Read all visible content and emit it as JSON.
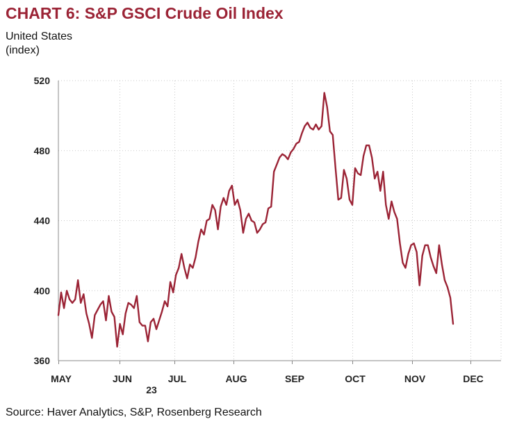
{
  "chart_data": {
    "type": "line",
    "title": "CHART 6: S&P GSCI Crude Oil Index",
    "subtitle": "United States",
    "unit_label": "(index)",
    "source": "Source: Haver Analytics, S&P, Rosenberg Research",
    "xlabel": "",
    "ylabel": "(index)",
    "ylim": [
      360,
      520
    ],
    "yticks": [
      360,
      400,
      440,
      480,
      520
    ],
    "grid": true,
    "x_ticks": [
      "MAY",
      "JUN",
      "JUL",
      "AUG",
      "SEP",
      "OCT",
      "NOV",
      "DEC"
    ],
    "year_label": "23",
    "series": [
      {
        "name": "S&P GSCI Crude Oil Index",
        "color": "#9b2335",
        "values": [
          386,
          399,
          390,
          400,
          395,
          393,
          395,
          406,
          393,
          398,
          387,
          381,
          373,
          386,
          389,
          392,
          394,
          383,
          397,
          388,
          385,
          368,
          381,
          375,
          387,
          393,
          392,
          390,
          397,
          382,
          380,
          380,
          371,
          382,
          384,
          378,
          383,
          388,
          394,
          391,
          405,
          399,
          409,
          413,
          421,
          413,
          407,
          415,
          413,
          419,
          428,
          435,
          432,
          440,
          441,
          449,
          446,
          435,
          448,
          453,
          449,
          457,
          460,
          449,
          452,
          446,
          433,
          441,
          444,
          440,
          439,
          433,
          435,
          438,
          439,
          447,
          448,
          468,
          472,
          476,
          478,
          477,
          475,
          479,
          481,
          484,
          485,
          490,
          494,
          496,
          493,
          492,
          495,
          492,
          494,
          513,
          505,
          491,
          489,
          470,
          452,
          453,
          469,
          464,
          452,
          449,
          470,
          467,
          466,
          477,
          483,
          483,
          476,
          464,
          468,
          457,
          468,
          449,
          441,
          451,
          445,
          441,
          427,
          416,
          413,
          421,
          426,
          427,
          422,
          403,
          420,
          426,
          426,
          419,
          414,
          410,
          426,
          415,
          406,
          402,
          396,
          381
        ]
      }
    ]
  }
}
